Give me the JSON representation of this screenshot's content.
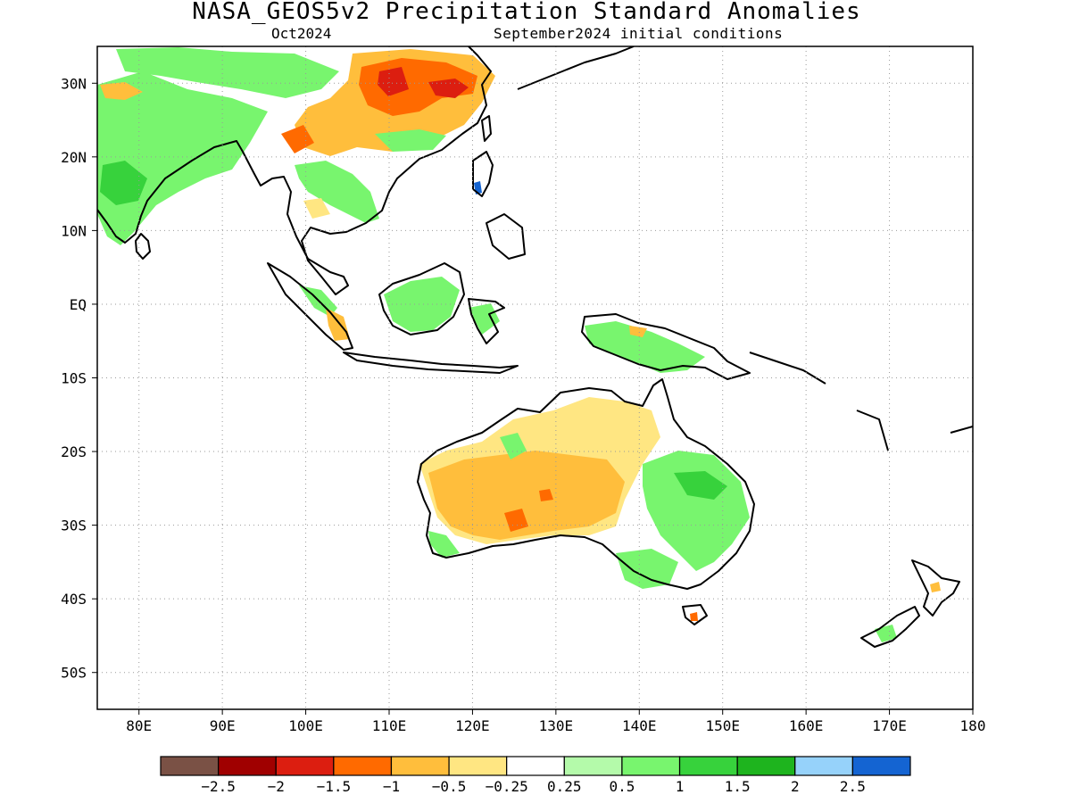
{
  "header": {
    "title": "NASA_GEOS5v2 Precipitation Standard Anomalies",
    "forecast_month": "Oct2024",
    "initial_conditions": "September2024 initial conditions"
  },
  "map": {
    "lon_range": [
      75,
      180
    ],
    "lat_range": [
      -55,
      35
    ],
    "lat_ticks": [
      {
        "value": 30,
        "label": "30N"
      },
      {
        "value": 20,
        "label": "20N"
      },
      {
        "value": 10,
        "label": "10N"
      },
      {
        "value": 0,
        "label": "EQ"
      },
      {
        "value": -10,
        "label": "10S"
      },
      {
        "value": -20,
        "label": "20S"
      },
      {
        "value": -30,
        "label": "30S"
      },
      {
        "value": -40,
        "label": "40S"
      },
      {
        "value": -50,
        "label": "50S"
      }
    ],
    "lon_ticks": [
      {
        "value": 80,
        "label": "80E"
      },
      {
        "value": 90,
        "label": "90E"
      },
      {
        "value": 100,
        "label": "100E"
      },
      {
        "value": 110,
        "label": "110E"
      },
      {
        "value": 120,
        "label": "120E"
      },
      {
        "value": 130,
        "label": "130E"
      },
      {
        "value": 140,
        "label": "140E"
      },
      {
        "value": 150,
        "label": "150E"
      },
      {
        "value": 160,
        "label": "160E"
      },
      {
        "value": 170,
        "label": "170E"
      },
      {
        "value": 180,
        "label": "180"
      }
    ],
    "grid": "dotted"
  },
  "colorbar": {
    "colors": [
      "#7a5145",
      "#a00000",
      "#dc1e10",
      "#ff6a00",
      "#ffbe3c",
      "#ffe682",
      "#ffffff",
      "#b4faaa",
      "#78f56e",
      "#37d23c",
      "#1eb41e",
      "#96d2fa",
      "#1464d2"
    ],
    "labels": [
      "−2.5",
      "−2",
      "−1.5",
      "−1",
      "−0.5",
      "−0.25",
      "0.25",
      "0.5",
      "1",
      "1.5",
      "2",
      "2.5"
    ]
  }
}
